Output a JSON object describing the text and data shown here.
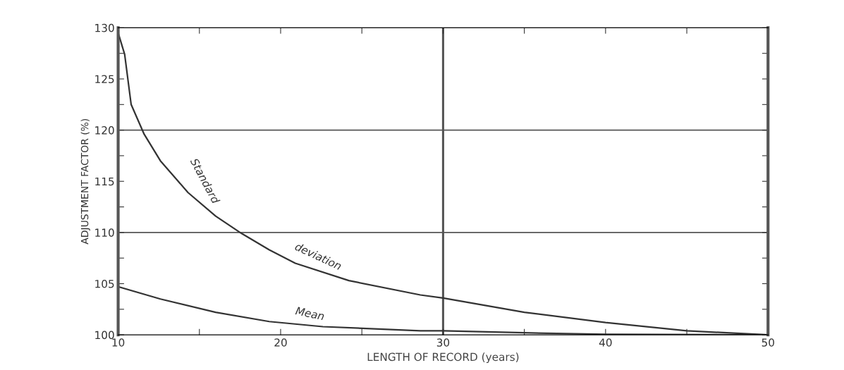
{
  "chart_data": {
    "type": "line",
    "xlabel": "LENGTH OF RECORD (years)",
    "ylabel": "ADJUSTMENT FACTOR (%)",
    "xlim": [
      10,
      50
    ],
    "ylim": [
      100,
      130
    ],
    "xticks": [
      10,
      {
        "value": 15,
        "label": null
      },
      20,
      {
        "value": 25,
        "label": null
      },
      30,
      {
        "value": 35,
        "label": null
      },
      40,
      {
        "value": 45,
        "label": null
      },
      50
    ],
    "yticks": [
      100,
      {
        "value": 102.5,
        "label": null
      },
      105,
      {
        "value": 107.5,
        "label": null
      },
      110,
      {
        "value": 112.5,
        "label": null
      },
      115,
      {
        "value": 117.5,
        "label": null
      },
      120,
      {
        "value": 122.5,
        "label": null
      },
      125,
      {
        "value": 127.5,
        "label": null
      },
      130
    ],
    "grid": false,
    "marker": "none",
    "line_style": "solid",
    "series": [
      {
        "name": "Standard deviation",
        "color": "#333333",
        "x": [
          10,
          10.4,
          10.8,
          11.6,
          12.6,
          14.3,
          16,
          17.6,
          19.3,
          20.9,
          24.2,
          28.6,
          30,
          35,
          40,
          45,
          50
        ],
        "values": [
          129.5,
          127.4,
          122.5,
          119.6,
          117.0,
          113.9,
          111.6,
          109.9,
          108.3,
          107.0,
          105.3,
          103.9,
          103.6,
          102.2,
          101.2,
          100.4,
          100
        ]
      },
      {
        "name": "Mean",
        "color": "#333333",
        "x": [
          10,
          12.6,
          16,
          19.3,
          22.6,
          28.6,
          30,
          35,
          40,
          50
        ],
        "values": [
          104.7,
          103.5,
          102.2,
          101.3,
          100.8,
          100.4,
          100.4,
          100.2,
          100.05,
          100
        ]
      }
    ],
    "ref_lines": [
      {
        "axis": "y",
        "value": 110,
        "color": "#555555"
      },
      {
        "axis": "y",
        "value": 120,
        "color": "#555555"
      },
      {
        "axis": "x",
        "value": 30,
        "color": "#555555"
      }
    ]
  }
}
